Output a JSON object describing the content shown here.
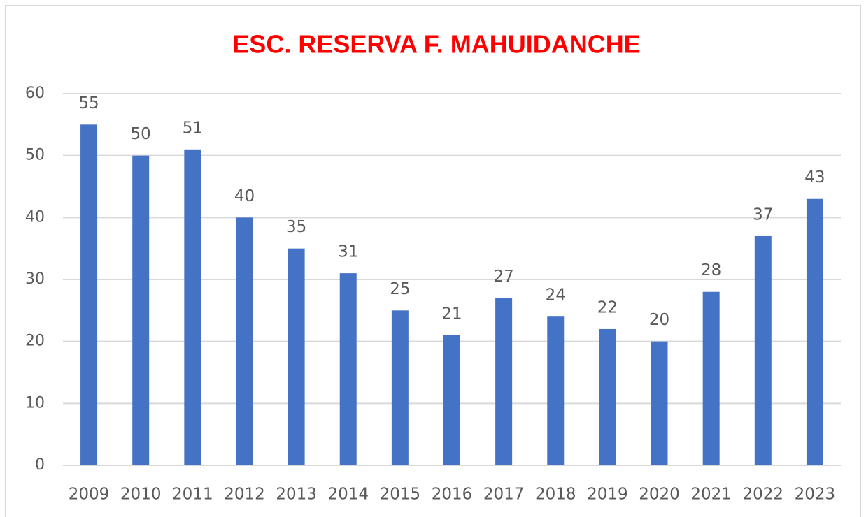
{
  "chart_data": {
    "type": "bar",
    "title": "ESC. RESERVA F. MAHUIDANCHE",
    "categories": [
      "2009",
      "2010",
      "2011",
      "2012",
      "2013",
      "2014",
      "2015",
      "2016",
      "2017",
      "2018",
      "2019",
      "2020",
      "2021",
      "2022",
      "2023"
    ],
    "values": [
      55,
      50,
      51,
      40,
      35,
      31,
      25,
      21,
      27,
      24,
      22,
      20,
      28,
      37,
      43
    ],
    "color": "#4472c4",
    "ylim": [
      0,
      60
    ],
    "yticks": [
      0,
      10,
      20,
      30,
      40,
      50,
      60
    ],
    "grid": true,
    "data_labels": true
  }
}
